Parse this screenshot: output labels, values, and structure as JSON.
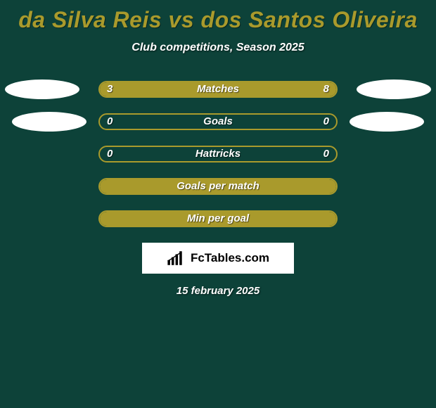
{
  "background_color": "#0d4239",
  "accent_color": "#a99a2c",
  "ellipse_color": "#ffffff",
  "title": "da Silva Reis vs dos Santos Oliveira",
  "subtitle": "Club competitions, Season 2025",
  "rows": [
    {
      "left": "3",
      "right": "8",
      "label": "Matches",
      "fill_left_pct": 27,
      "fill_right_pct": 73,
      "show_left_ellipse": true,
      "show_right_ellipse": true,
      "ellipse_variant": 1
    },
    {
      "left": "0",
      "right": "0",
      "label": "Goals",
      "fill_left_pct": 0,
      "fill_right_pct": 0,
      "show_left_ellipse": true,
      "show_right_ellipse": true,
      "ellipse_variant": 2
    },
    {
      "left": "0",
      "right": "0",
      "label": "Hattricks",
      "fill_left_pct": 0,
      "fill_right_pct": 0,
      "show_left_ellipse": false,
      "show_right_ellipse": false
    },
    {
      "left": "",
      "right": "",
      "label": "Goals per match",
      "fill_left_pct": 100,
      "fill_right_pct": 0,
      "full": true,
      "show_left_ellipse": false,
      "show_right_ellipse": false
    },
    {
      "left": "",
      "right": "",
      "label": "Min per goal",
      "fill_left_pct": 100,
      "fill_right_pct": 0,
      "full": true,
      "show_left_ellipse": false,
      "show_right_ellipse": false
    }
  ],
  "logo_text": "FcTables.com",
  "date": "15 february 2025"
}
